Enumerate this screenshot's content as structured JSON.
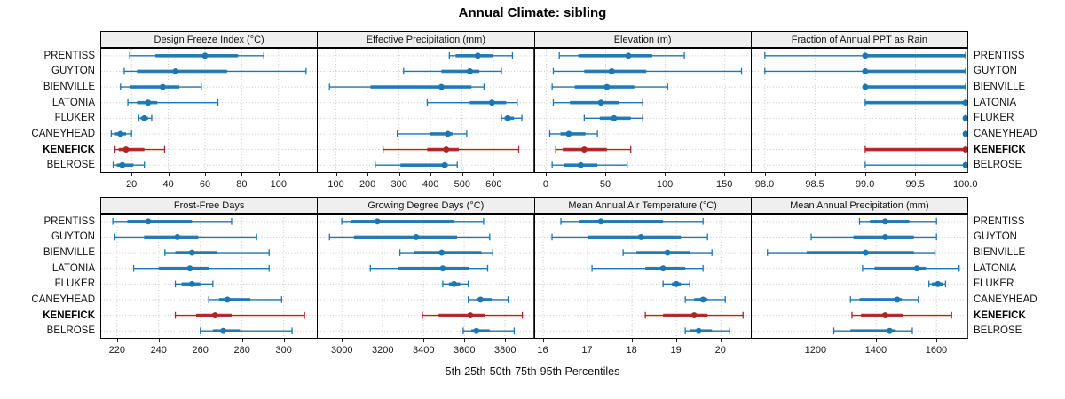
{
  "title": "Annual Climate: sibling",
  "caption": "5th-25th-50th-75th-95th Percentiles",
  "sites": [
    "PRENTISS",
    "GUYTON",
    "BIENVILLE",
    "LATONIA",
    "FLUKER",
    "CANEYHEAD",
    "KENEFICK",
    "BELROSE"
  ],
  "highlight_site": "KENEFICK",
  "colors": {
    "series": "#1b76b4",
    "highlight": "#b22222",
    "strip_bg": "#efefef",
    "grid": "#c4c4c4",
    "border": "#000000"
  },
  "chart_data": [
    {
      "type": "interval",
      "title": "Design Freeze Index (°C)",
      "row": 0,
      "col": 0,
      "xlim": [
        3,
        121
      ],
      "tick_values": [
        20,
        40,
        60,
        80,
        100
      ],
      "tick_labels": [
        "20",
        "40",
        "60",
        "80",
        "100"
      ],
      "percentiles": [
        5,
        25,
        50,
        75,
        95
      ],
      "values": [
        [
          19,
          33,
          60,
          78,
          92
        ],
        [
          16,
          23,
          44,
          72,
          115
        ],
        [
          14,
          19,
          37,
          46,
          58
        ],
        [
          18,
          23,
          29,
          34,
          67
        ],
        [
          24,
          25,
          27,
          29,
          31
        ],
        [
          9,
          11,
          14,
          17,
          20
        ],
        [
          11,
          13,
          17,
          27,
          38
        ],
        [
          10,
          12,
          15,
          21,
          27
        ]
      ]
    },
    {
      "type": "interval",
      "title": "Effective Precipitation (mm)",
      "row": 0,
      "col": 1,
      "xlim": [
        40,
        727
      ],
      "tick_values": [
        100,
        200,
        300,
        400,
        500,
        600
      ],
      "tick_labels": [
        "100",
        "200",
        "300",
        "400",
        "500",
        "600"
      ],
      "percentiles": [
        5,
        25,
        50,
        75,
        95
      ],
      "values": [
        [
          460,
          480,
          550,
          600,
          660
        ],
        [
          315,
          435,
          525,
          555,
          625
        ],
        [
          80,
          210,
          435,
          530,
          570
        ],
        [
          390,
          525,
          595,
          640,
          675
        ],
        [
          625,
          635,
          645,
          665,
          690
        ],
        [
          295,
          400,
          455,
          470,
          515
        ],
        [
          250,
          390,
          450,
          490,
          680
        ],
        [
          225,
          305,
          445,
          455,
          485
        ]
      ]
    },
    {
      "type": "interval",
      "title": "Elevation (m)",
      "row": 0,
      "col": 2,
      "xlim": [
        -10,
        172
      ],
      "tick_values": [
        0,
        50,
        100,
        150
      ],
      "tick_labels": [
        "0",
        "50",
        "100",
        "150"
      ],
      "percentiles": [
        5,
        25,
        50,
        75,
        95
      ],
      "values": [
        [
          11,
          27,
          69,
          89,
          116
        ],
        [
          6,
          32,
          55,
          84,
          164
        ],
        [
          5,
          24,
          51,
          74,
          102
        ],
        [
          6,
          20,
          46,
          61,
          81
        ],
        [
          32,
          45,
          57,
          71,
          81
        ],
        [
          3,
          12,
          19,
          33,
          43
        ],
        [
          8,
          14,
          32,
          51,
          71
        ],
        [
          5,
          15,
          29,
          43,
          68
        ]
      ]
    },
    {
      "type": "interval",
      "title": "Fraction of Annual PPT as Rain",
      "row": 0,
      "col": 3,
      "xlim": [
        97.86,
        100.02
      ],
      "tick_values": [
        98.0,
        98.5,
        99.0,
        99.5,
        100.0
      ],
      "tick_labels": [
        "98.0",
        "98.5",
        "99.0",
        "99.5",
        "100.0"
      ],
      "percentiles": [
        5,
        25,
        50,
        75,
        95
      ],
      "values": [
        [
          98,
          99,
          99,
          100,
          100
        ],
        [
          98,
          99,
          99,
          100,
          100
        ],
        [
          99,
          99,
          99,
          100,
          100
        ],
        [
          99,
          99,
          100,
          100,
          100
        ],
        [
          100,
          100,
          100,
          100,
          100
        ],
        [
          100,
          100,
          100,
          100,
          100
        ],
        [
          99,
          99,
          100,
          100,
          100
        ],
        [
          99,
          100,
          100,
          100,
          100
        ]
      ]
    },
    {
      "type": "interval",
      "title": "Frost-Free Days",
      "row": 1,
      "col": 0,
      "xlim": [
        212,
        316
      ],
      "tick_values": [
        220,
        240,
        260,
        280,
        300
      ],
      "tick_labels": [
        "220",
        "240",
        "260",
        "280",
        "300"
      ],
      "percentiles": [
        5,
        25,
        50,
        75,
        95
      ],
      "values": [
        [
          218,
          225,
          235,
          256,
          275
        ],
        [
          219,
          233,
          249,
          259,
          287
        ],
        [
          243,
          248,
          256,
          268,
          293
        ],
        [
          228,
          240,
          255,
          264,
          293
        ],
        [
          248,
          251,
          256,
          260,
          266
        ],
        [
          264,
          269,
          273,
          284,
          299
        ],
        [
          248,
          258,
          267,
          275,
          310
        ],
        [
          260,
          266,
          271,
          279,
          304
        ]
      ]
    },
    {
      "type": "interval",
      "title": "Growing Degree Days (°C)",
      "row": 1,
      "col": 1,
      "xlim": [
        2878,
        3940
      ],
      "tick_values": [
        3000,
        3200,
        3400,
        3600,
        3800
      ],
      "tick_labels": [
        "3000",
        "3200",
        "3400",
        "3600",
        "3800"
      ],
      "percentiles": [
        5,
        25,
        50,
        75,
        95
      ],
      "values": [
        [
          3000,
          3045,
          3175,
          3550,
          3695
        ],
        [
          2940,
          3060,
          3365,
          3565,
          3725
        ],
        [
          3285,
          3355,
          3490,
          3685,
          3740
        ],
        [
          3140,
          3275,
          3495,
          3625,
          3715
        ],
        [
          3495,
          3525,
          3550,
          3580,
          3620
        ],
        [
          3620,
          3660,
          3680,
          3735,
          3815
        ],
        [
          3395,
          3475,
          3630,
          3700,
          3885
        ],
        [
          3595,
          3635,
          3660,
          3725,
          3845
        ]
      ]
    },
    {
      "type": "interval",
      "title": "Mean Annual Air Temperature (°C)",
      "row": 1,
      "col": 2,
      "xlim": [
        15.8,
        20.68
      ],
      "tick_values": [
        16,
        17,
        18,
        19,
        20
      ],
      "tick_labels": [
        "16",
        "17",
        "18",
        "19",
        "20"
      ],
      "percentiles": [
        5,
        25,
        50,
        75,
        95
      ],
      "values": [
        [
          16.4,
          16.8,
          17.3,
          18.7,
          19.6
        ],
        [
          16.2,
          17.0,
          18.2,
          19.1,
          19.7
        ],
        [
          17.8,
          18.1,
          18.8,
          19.3,
          19.8
        ],
        [
          17.1,
          18.3,
          18.7,
          19.2,
          19.6
        ],
        [
          18.7,
          18.9,
          19.0,
          19.1,
          19.3
        ],
        [
          19.2,
          19.4,
          19.6,
          19.7,
          20.1
        ],
        [
          18.3,
          18.7,
          19.4,
          19.7,
          20.5
        ],
        [
          19.2,
          19.3,
          19.5,
          19.8,
          20.2
        ]
      ]
    },
    {
      "type": "interval",
      "title": "Mean Annual Precipitation (mm)",
      "row": 1,
      "col": 3,
      "xlim": [
        985,
        1703
      ],
      "tick_values": [
        1200,
        1400,
        1600
      ],
      "tick_labels": [
        "1200",
        "1400",
        "1600"
      ],
      "percentiles": [
        5,
        25,
        50,
        75,
        95
      ],
      "values": [
        [
          1345,
          1380,
          1430,
          1510,
          1600
        ],
        [
          1185,
          1325,
          1430,
          1525,
          1600
        ],
        [
          1040,
          1170,
          1365,
          1525,
          1595
        ],
        [
          1355,
          1395,
          1535,
          1565,
          1675
        ],
        [
          1575,
          1585,
          1605,
          1620,
          1630
        ],
        [
          1315,
          1345,
          1470,
          1485,
          1540
        ],
        [
          1320,
          1350,
          1430,
          1490,
          1650
        ],
        [
          1260,
          1315,
          1445,
          1465,
          1520
        ]
      ]
    }
  ]
}
